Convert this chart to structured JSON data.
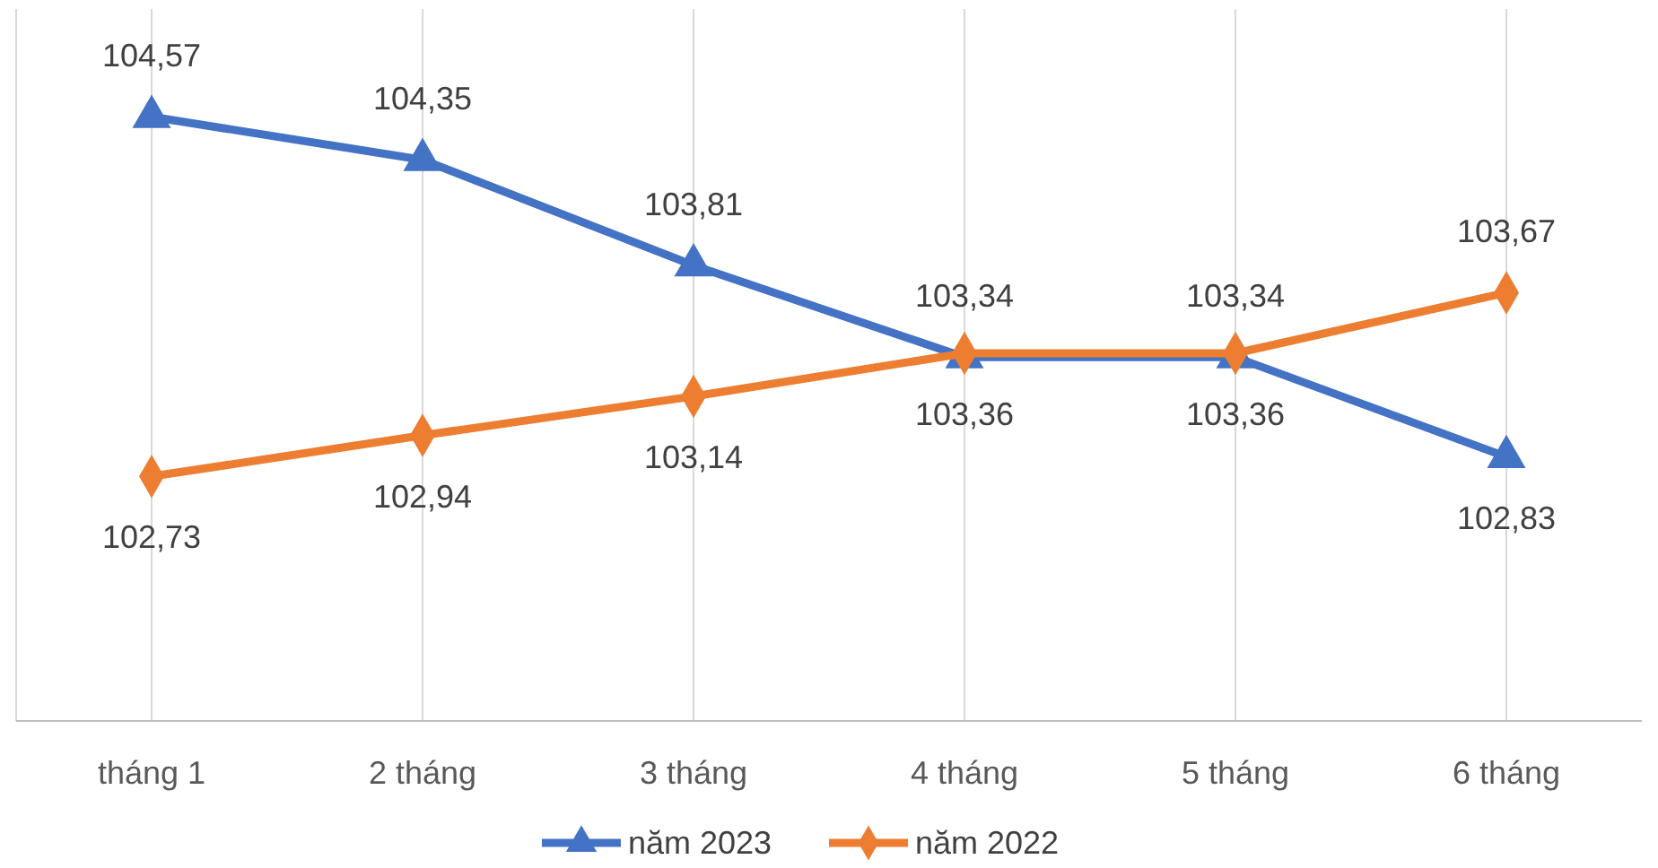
{
  "chart_data": {
    "type": "line",
    "categories": [
      "tháng 1",
      "2 tháng",
      "3 tháng",
      "4 tháng",
      "5 tháng",
      "6 tháng"
    ],
    "series": [
      {
        "name": "năm 2023",
        "color": "#4472c4",
        "marker": "triangle",
        "values": [
          104.57,
          104.35,
          103.81,
          103.34,
          103.34,
          102.83
        ],
        "value_labels": [
          "104,57",
          "104,35",
          "103,81",
          "103,34",
          "103,34",
          "102,83"
        ]
      },
      {
        "name": "năm 2022",
        "color": "#ed7d31",
        "marker": "diamond",
        "values": [
          102.73,
          102.94,
          103.14,
          103.36,
          103.36,
          103.67
        ],
        "value_labels": [
          "102,73",
          "102,94",
          "103,14",
          "103,36",
          "103,36",
          "103,67"
        ]
      }
    ],
    "grid": "x",
    "legend": "bottom",
    "line_style": "solid"
  }
}
